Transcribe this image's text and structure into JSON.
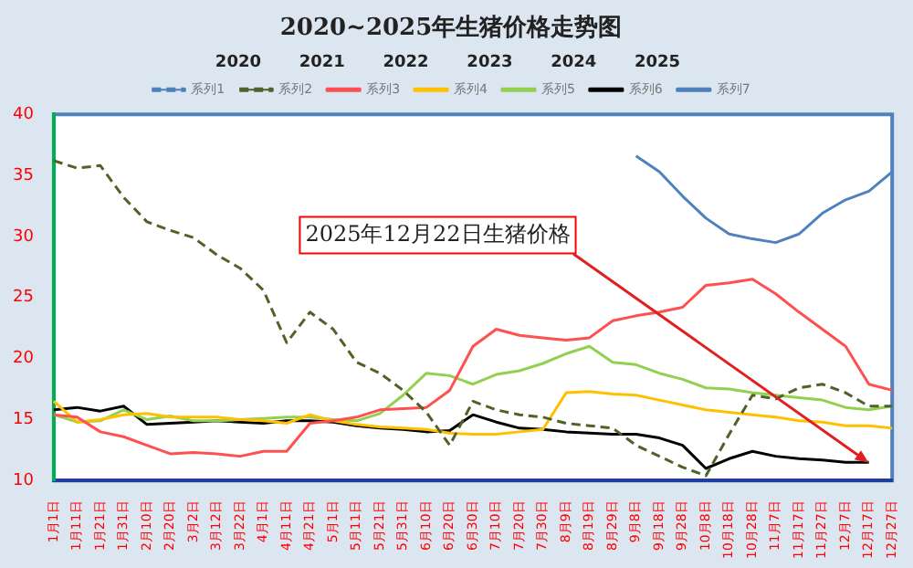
{
  "chart_data": {
    "type": "line",
    "title": "2020~2025年生猪价格走势图",
    "categories": [
      "1月1日",
      "1月11日",
      "1月21日",
      "1月31日",
      "2月10日",
      "2月20日",
      "3月2日",
      "3月12日",
      "3月22日",
      "4月1日",
      "4月11日",
      "4月21日",
      "5月1日",
      "5月11日",
      "5月21日",
      "5月31日",
      "6月10日",
      "6月20日",
      "6月30日",
      "7月10日",
      "7月20日",
      "7月30日",
      "8月9日",
      "8月19日",
      "8月29日",
      "9月8日",
      "9月18日",
      "9月28日",
      "10月8日",
      "10月18日",
      "10月28日",
      "11月7日",
      "11月17日",
      "11月27日",
      "12月7日",
      "12月17日",
      "12月27日"
    ],
    "ylim": [
      10,
      40
    ],
    "yticks": [
      10,
      15,
      20,
      25,
      30,
      35,
      40
    ],
    "grid": false,
    "legend": "top",
    "marker": "none",
    "annotations": [
      "2020",
      "2021",
      "2022",
      "2023",
      "2024",
      "2025",
      {
        "text": "2025年12月22日生猪价格",
        "x": "12月17日",
        "y": 11.5
      }
    ],
    "series": [
      {
        "name": "系列1",
        "color": "#4f81bd",
        "line_style": "dashed",
        "values": [
          null,
          null,
          null,
          null,
          null,
          null,
          null,
          null,
          null,
          null,
          null,
          null,
          null,
          null,
          null,
          null,
          null,
          null,
          null,
          null,
          null,
          null,
          null,
          null,
          null,
          null,
          null,
          null,
          null,
          null,
          null,
          null,
          null,
          null,
          null,
          null,
          null
        ]
      },
      {
        "name": "系列2",
        "color": "#4f6228",
        "line_style": "dashed",
        "values": [
          36.2,
          35.6,
          35.8,
          33.2,
          31.2,
          30.5,
          29.9,
          28.5,
          27.4,
          25.6,
          21.3,
          23.8,
          22.4,
          19.7,
          18.8,
          17.4,
          15.6,
          12.9,
          16.5,
          15.8,
          15.4,
          15.2,
          14.7,
          14.5,
          14.3,
          12.9,
          12.0,
          11.1,
          10.4,
          13.8,
          17.0,
          16.7,
          17.6,
          17.9,
          17.2,
          16.1,
          16.1
        ]
      },
      {
        "name": "系列3",
        "color": "#ff5050",
        "values": [
          15.4,
          15.2,
          14.0,
          13.6,
          12.9,
          12.2,
          12.3,
          12.2,
          12.0,
          12.4,
          12.4,
          14.7,
          14.9,
          15.2,
          15.8,
          15.9,
          16.0,
          17.4,
          21.0,
          22.4,
          21.9,
          21.7,
          21.5,
          21.7,
          23.1,
          23.5,
          23.8,
          24.2,
          26.0,
          26.2,
          26.5,
          25.3,
          23.8,
          22.4,
          21.0,
          17.9,
          17.4
        ]
      },
      {
        "name": "系列4",
        "color": "#ffc000",
        "values": [
          16.5,
          14.8,
          15.0,
          15.4,
          15.5,
          15.2,
          15.2,
          15.2,
          15.0,
          14.9,
          14.7,
          15.4,
          14.9,
          14.6,
          14.4,
          14.3,
          14.2,
          13.9,
          13.8,
          13.8,
          14.0,
          14.2,
          17.2,
          17.3,
          17.1,
          17.0,
          16.6,
          16.2,
          15.8,
          15.6,
          15.4,
          15.2,
          14.9,
          14.8,
          14.5,
          14.5,
          14.3
        ]
      },
      {
        "name": "系列5",
        "color": "#92d050",
        "values": [
          15.4,
          14.8,
          14.9,
          15.8,
          15.0,
          15.3,
          14.9,
          14.9,
          15.0,
          15.1,
          15.2,
          15.2,
          15.0,
          14.9,
          15.5,
          17.0,
          18.8,
          18.6,
          17.9,
          18.7,
          19.0,
          19.6,
          20.4,
          21.0,
          19.7,
          19.5,
          18.8,
          18.3,
          17.6,
          17.5,
          17.2,
          17.0,
          16.8,
          16.6,
          16.0,
          15.8,
          16.1
        ]
      },
      {
        "name": "系列6",
        "color": "#000000",
        "values": [
          15.8,
          16.0,
          15.7,
          16.1,
          14.6,
          14.7,
          14.8,
          14.9,
          14.8,
          14.7,
          14.9,
          14.9,
          14.8,
          14.5,
          14.3,
          14.2,
          14.0,
          14.1,
          15.4,
          14.8,
          14.3,
          14.2,
          14.0,
          13.9,
          13.8,
          13.8,
          13.5,
          12.9,
          11.0,
          11.8,
          12.4,
          12.0,
          11.8,
          11.7,
          11.5,
          11.5,
          null
        ]
      },
      {
        "name": "系列7",
        "color": "#4f81bd",
        "values": [
          null,
          null,
          null,
          null,
          null,
          null,
          null,
          null,
          null,
          null,
          null,
          null,
          null,
          null,
          null,
          null,
          null,
          null,
          null,
          null,
          null,
          null,
          null,
          null,
          null,
          36.6,
          35.3,
          33.3,
          31.5,
          30.2,
          29.8,
          29.5,
          30.2,
          31.9,
          33.0,
          33.7,
          35.3
        ]
      }
    ]
  }
}
